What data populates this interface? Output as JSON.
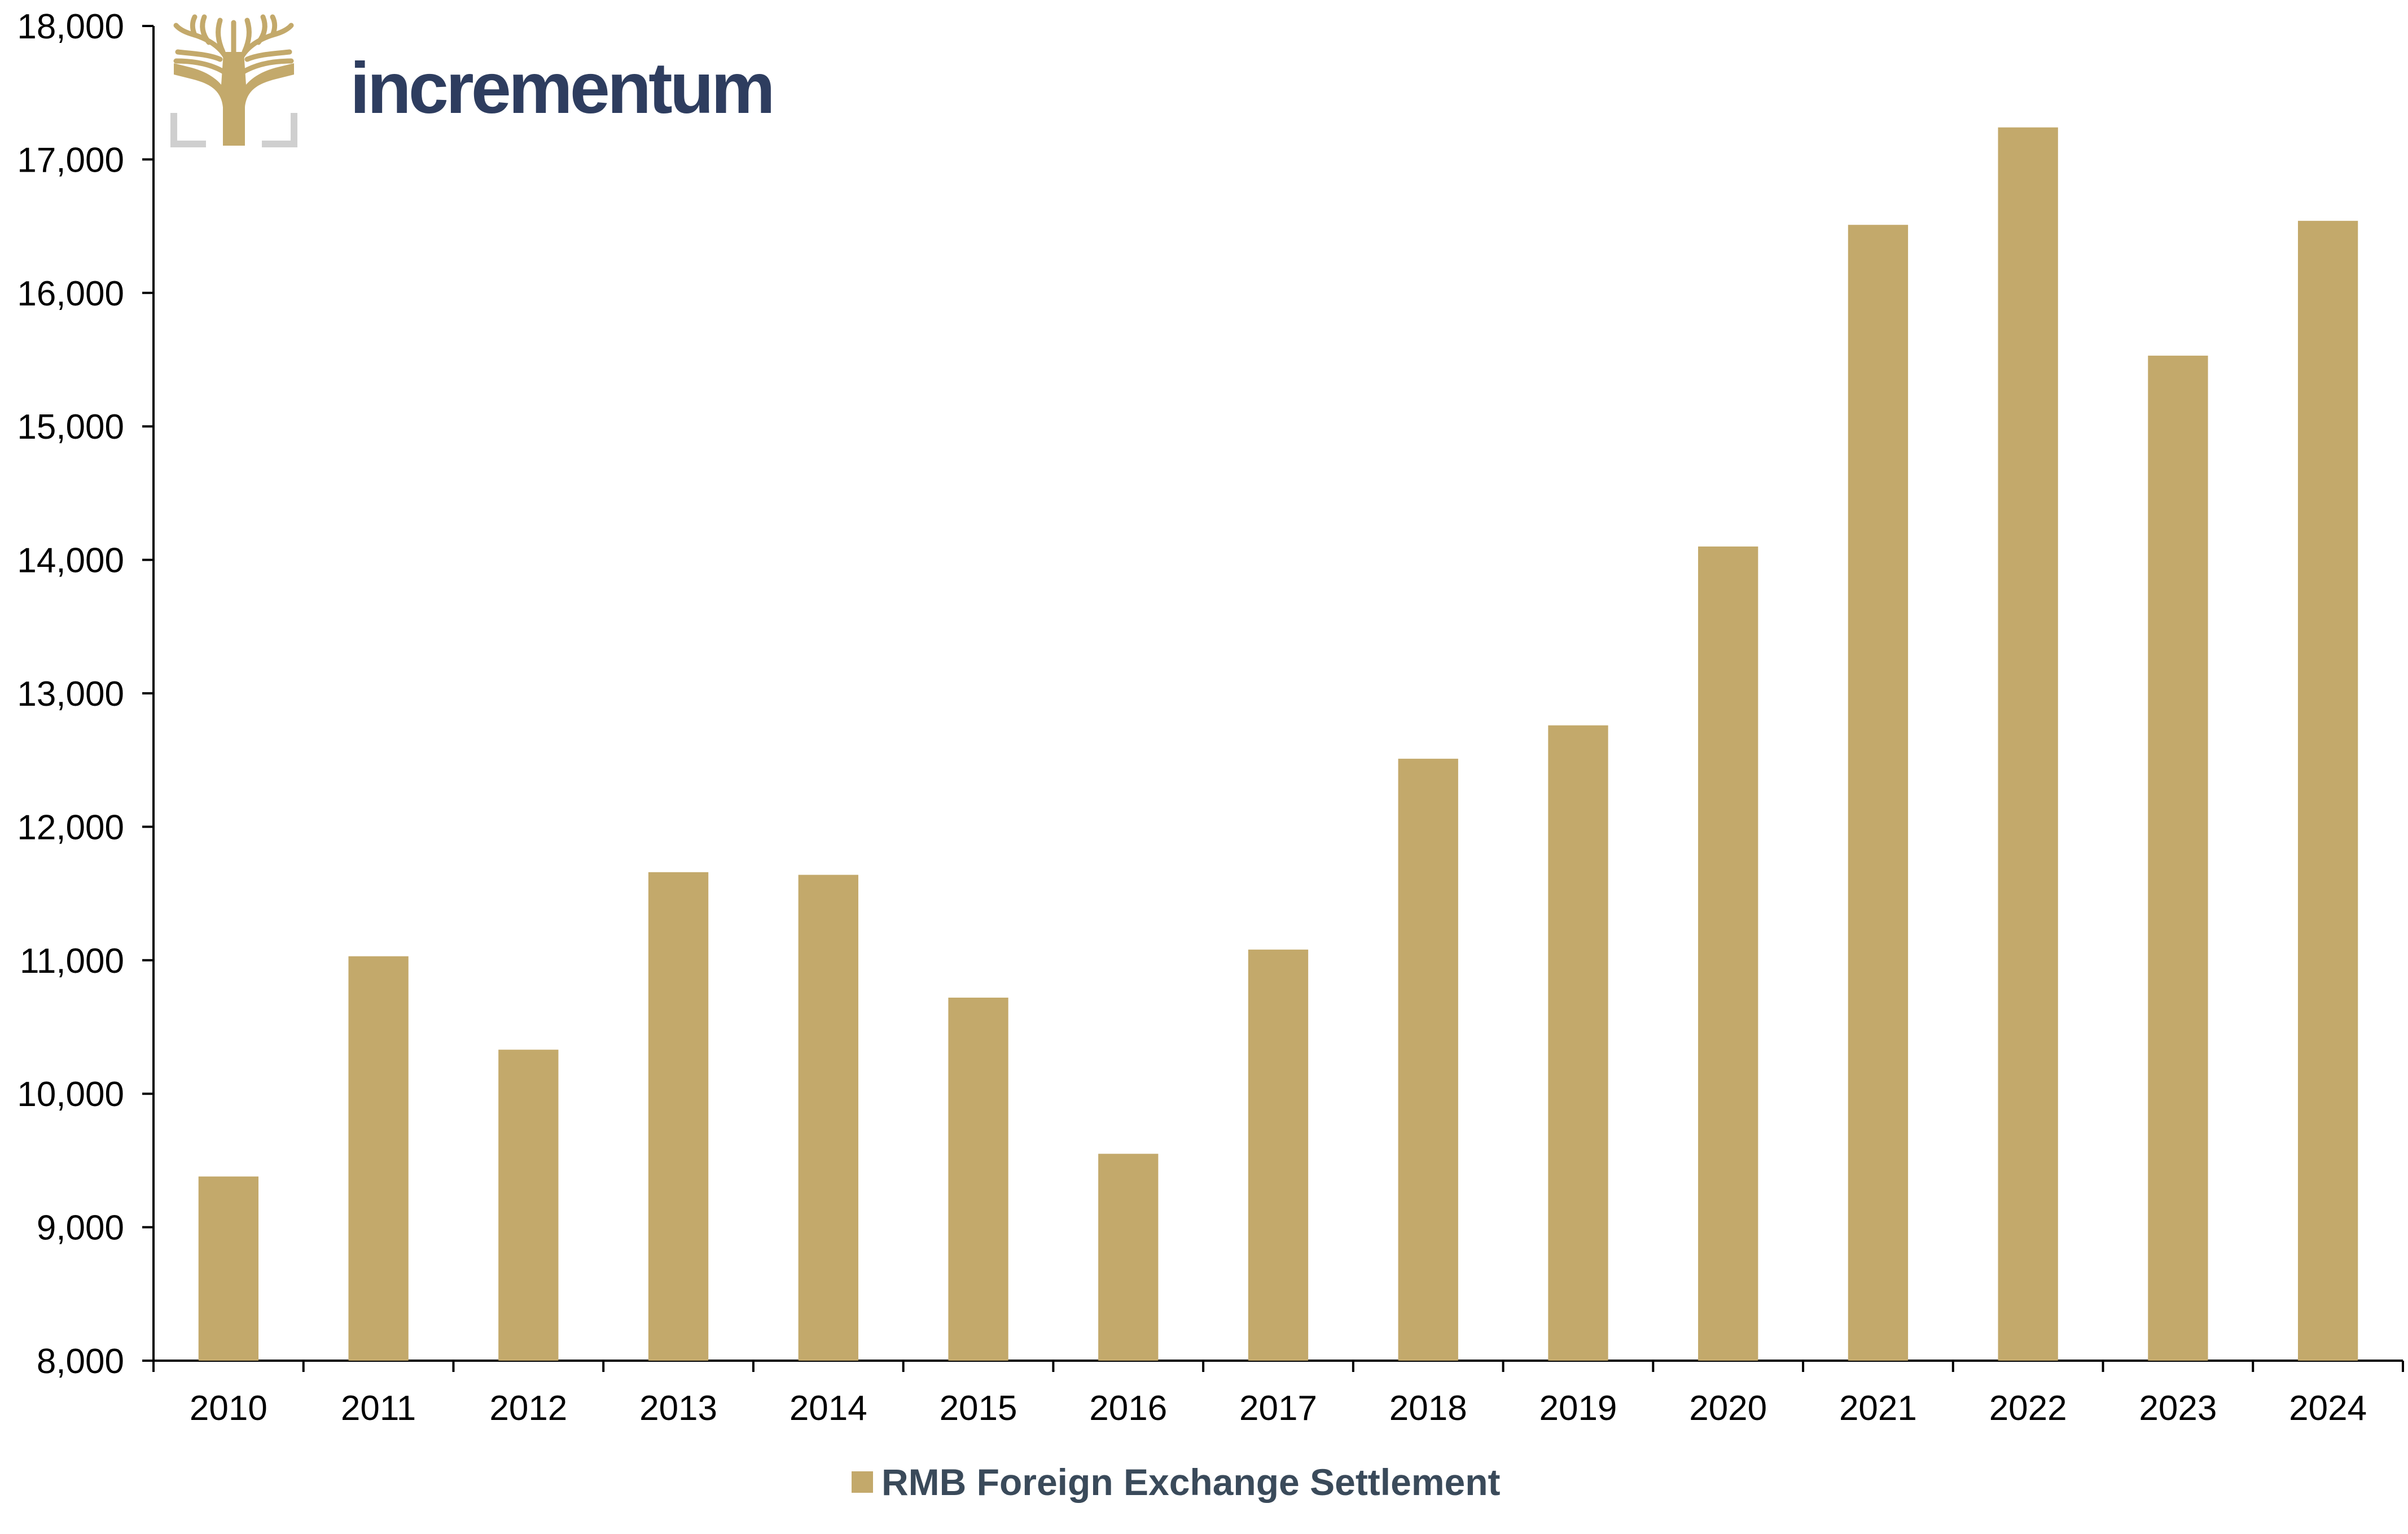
{
  "brand": {
    "name": "incrementum",
    "text_color": "#2e3d5f",
    "mark_color": "#c3a96b",
    "frame_color": "#cfcfcf",
    "icon": "tree-logo-icon"
  },
  "colors": {
    "bar": "#c3a96b",
    "axis": "#000000"
  },
  "legend": {
    "label": "RMB Foreign Exchange Settlement",
    "placement": "bottom-center"
  },
  "chart_data": {
    "type": "bar",
    "title": "",
    "xlabel": "",
    "ylabel": "",
    "categories": [
      "2010",
      "2011",
      "2012",
      "2013",
      "2014",
      "2015",
      "2016",
      "2017",
      "2018",
      "2019",
      "2020",
      "2021",
      "2022",
      "2023",
      "2024"
    ],
    "series": [
      {
        "name": "RMB Foreign Exchange Settlement",
        "values": [
          9380,
          11030,
          10330,
          11660,
          11640,
          10720,
          9550,
          11080,
          12510,
          12760,
          14100,
          16510,
          17240,
          15530,
          16540
        ]
      }
    ],
    "ylim": [
      8000,
      18000
    ],
    "yticks": [
      8000,
      9000,
      10000,
      11000,
      12000,
      13000,
      14000,
      15000,
      16000,
      17000,
      18000
    ],
    "ytick_labels": [
      "8,000",
      "9,000",
      "10,000",
      "11,000",
      "12,000",
      "13,000",
      "14,000",
      "15,000",
      "16,000",
      "17,000",
      "18,000"
    ],
    "grid": false,
    "legend_position": "bottom-center"
  }
}
